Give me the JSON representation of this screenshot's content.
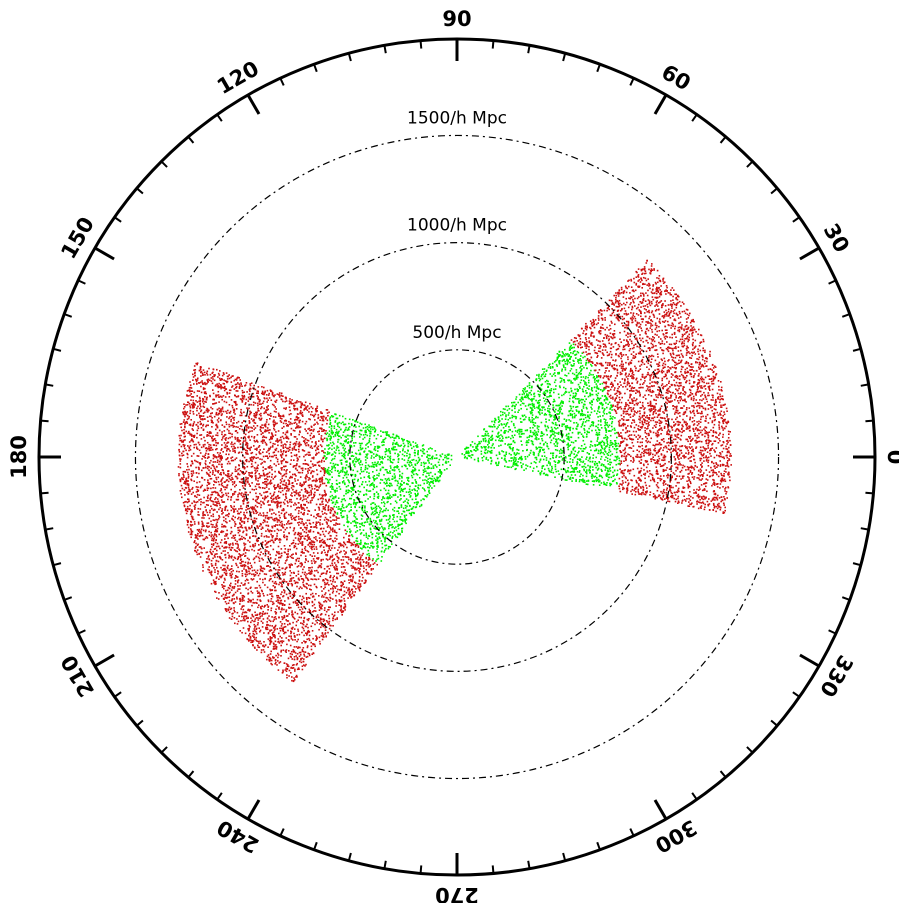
{
  "chart_data": {
    "type": "scatter",
    "projection": "polar",
    "title": "",
    "angle_ticks_deg": [
      0,
      30,
      60,
      90,
      120,
      150,
      180,
      210,
      240,
      270,
      300,
      330
    ],
    "angle_tick_labels": [
      "0",
      "30",
      "60",
      "90",
      "120",
      "150",
      "180",
      "210",
      "240",
      "270",
      "300",
      "330"
    ],
    "radius_unit": "h^-1 Mpc",
    "radius_max": 1950,
    "rings": [
      {
        "radius": 500,
        "label": "500/h Mpc"
      },
      {
        "radius": 1000,
        "label": "1000/h Mpc"
      },
      {
        "radius": 1500,
        "label": "1500/h Mpc"
      }
    ],
    "ring_style": "dash-dot",
    "grid": false,
    "series": [
      {
        "color": "#00ee00",
        "wedges": [
          {
            "angle_min_deg": -12,
            "angle_max_deg": 46,
            "r_min": 20,
            "r_max": 760
          },
          {
            "angle_min_deg": 160,
            "angle_max_deg": 234,
            "r_min": 20,
            "r_max": 620
          }
        ]
      },
      {
        "color": "#cc1111",
        "wedges": [
          {
            "angle_min_deg": -12,
            "angle_max_deg": 46,
            "r_min": 760,
            "r_max": 1280
          },
          {
            "angle_min_deg": 160,
            "angle_max_deg": 234,
            "r_min": 620,
            "r_max": 1300
          }
        ]
      }
    ]
  }
}
